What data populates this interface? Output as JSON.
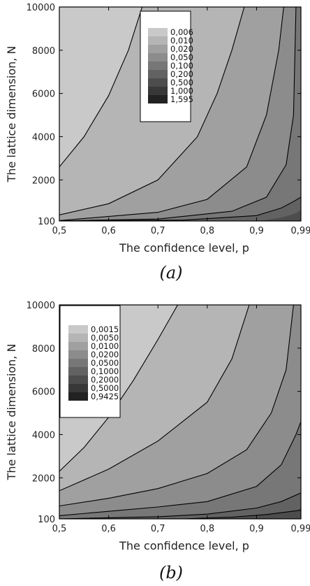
{
  "charts": [
    {
      "caption": "(a)",
      "chart_data": {
        "type": "heatmap",
        "xlabel": "The confidence level, p",
        "ylabel": "The lattice dimension, N",
        "xticks": [
          "0,5",
          "0,6",
          "0,7",
          "0,8",
          "0,9",
          "0,99"
        ],
        "yticks": [
          "100",
          "2000",
          "4000",
          "6000",
          "8000",
          "10000"
        ],
        "xlim": [
          0.5,
          0.99
        ],
        "ylim": [
          100,
          10000
        ],
        "legend_position": "top-center",
        "levels": [
          "0,006",
          "0,010",
          "0,020",
          "0,050",
          "0,100",
          "0,200",
          "0,500",
          "1,000",
          "1,595"
        ],
        "level_colors": [
          "#c9c9c9",
          "#b5b5b5",
          "#a0a0a0",
          "#8c8c8c",
          "#777777",
          "#626262",
          "#4d4d4d",
          "#383838",
          "#222222"
        ],
        "contours": [
          {
            "level": "0,006 / 0,010",
            "points": [
              [
                0.5,
                2600
              ],
              [
                0.55,
                4000
              ],
              [
                0.6,
                5900
              ],
              [
                0.64,
                8000
              ],
              [
                0.668,
                10000
              ]
            ]
          },
          {
            "level": "0,010 / 0,020",
            "points": [
              [
                0.5,
                380
              ],
              [
                0.6,
                900
              ],
              [
                0.7,
                2000
              ],
              [
                0.78,
                4000
              ],
              [
                0.82,
                6000
              ],
              [
                0.85,
                8000
              ],
              [
                0.875,
                10000
              ]
            ]
          },
          {
            "level": "0,020 / 0,050",
            "points": [
              [
                0.5,
                120
              ],
              [
                0.7,
                500
              ],
              [
                0.8,
                1100
              ],
              [
                0.88,
                2600
              ],
              [
                0.92,
                5000
              ],
              [
                0.945,
                8000
              ],
              [
                0.955,
                10000
              ]
            ]
          },
          {
            "level": "0,050 / 0,100",
            "points": [
              [
                0.5,
                102
              ],
              [
                0.7,
                190
              ],
              [
                0.85,
                550
              ],
              [
                0.92,
                1200
              ],
              [
                0.96,
                2700
              ],
              [
                0.975,
                5000
              ],
              [
                0.98,
                10000
              ]
            ]
          },
          {
            "level": "0,100 / 0,200",
            "points": [
              [
                0.5,
                100
              ],
              [
                0.75,
                140
              ],
              [
                0.9,
                350
              ],
              [
                0.95,
                700
              ],
              [
                0.975,
                1000
              ],
              [
                0.99,
                1200
              ]
            ]
          }
        ]
      }
    },
    {
      "caption": "(b)",
      "chart_data": {
        "type": "heatmap",
        "xlabel": "The confidence level, p",
        "ylabel": "The lattice dimension, N",
        "xticks": [
          "0,5",
          "0,6",
          "0,7",
          "0,8",
          "0,9",
          "0,99"
        ],
        "yticks": [
          "100",
          "2000",
          "4000",
          "6000",
          "8000",
          "10000"
        ],
        "xlim": [
          0.5,
          0.99
        ],
        "ylim": [
          100,
          10000
        ],
        "legend_position": "top-left",
        "levels": [
          "0,0015",
          "0,0050",
          "0,0100",
          "0,0200",
          "0,0500",
          "0,1000",
          "0,2000",
          "0,5000",
          "0,9425"
        ],
        "level_colors": [
          "#c9c9c9",
          "#b5b5b5",
          "#a0a0a0",
          "#8c8c8c",
          "#777777",
          "#626262",
          "#4d4d4d",
          "#383838",
          "#222222"
        ],
        "contours": [
          {
            "level": "0,0015 / 0,0050",
            "points": [
              [
                0.5,
                2300
              ],
              [
                0.55,
                3400
              ],
              [
                0.6,
                4800
              ],
              [
                0.65,
                6500
              ],
              [
                0.7,
                8400
              ],
              [
                0.74,
                10000
              ]
            ]
          },
          {
            "level": "0,0050 / 0,0100",
            "points": [
              [
                0.5,
                1400
              ],
              [
                0.6,
                2400
              ],
              [
                0.7,
                3700
              ],
              [
                0.8,
                5500
              ],
              [
                0.85,
                7500
              ],
              [
                0.885,
                10000
              ]
            ]
          },
          {
            "level": "0,0100 / 0,0200",
            "points": [
              [
                0.5,
                700
              ],
              [
                0.6,
                1050
              ],
              [
                0.7,
                1500
              ],
              [
                0.8,
                2200
              ],
              [
                0.88,
                3300
              ],
              [
                0.93,
                5000
              ],
              [
                0.96,
                7000
              ],
              [
                0.975,
                10000
              ]
            ]
          },
          {
            "level": "0,0200 / 0,0500",
            "points": [
              [
                0.5,
                250
              ],
              [
                0.6,
                450
              ],
              [
                0.7,
                650
              ],
              [
                0.8,
                900
              ],
              [
                0.9,
                1600
              ],
              [
                0.95,
                2600
              ],
              [
                0.98,
                4000
              ],
              [
                0.99,
                4600
              ]
            ]
          },
          {
            "level": "0,0500 / 0,1000",
            "points": [
              [
                0.5,
                100
              ],
              [
                0.7,
                200
              ],
              [
                0.8,
                320
              ],
              [
                0.9,
                600
              ],
              [
                0.95,
                900
              ],
              [
                0.99,
                1300
              ]
            ]
          },
          {
            "level": "0,1000 / 0,2000",
            "points": [
              [
                0.75,
                100
              ],
              [
                0.85,
                180
              ],
              [
                0.92,
                300
              ],
              [
                0.99,
                500
              ]
            ]
          }
        ]
      }
    }
  ]
}
